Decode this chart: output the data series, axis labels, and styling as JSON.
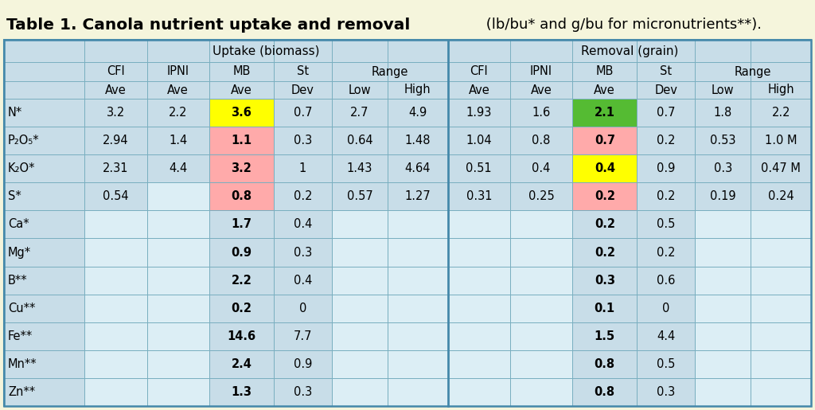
{
  "title_bold": "Table 1. Canola nutrient uptake and removal",
  "title_normal": " (lb/bu* and g/bu for micronutrients**).",
  "bg_color": "#F5F5DC",
  "table_bg": "#C8DDE8",
  "cell_light": "#DCEEf5",
  "grid_color": "#7AAFC0",
  "grid_color_thick": "#4488AA",
  "rows": [
    {
      "nutrient": "N*",
      "u_cfi": "3.2",
      "u_ipni": "2.2",
      "u_mb": "3.6",
      "u_sd": "0.7",
      "u_low": "2.7",
      "u_high": "4.9",
      "r_cfi": "1.93",
      "r_ipni": "1.6",
      "r_mb": "2.1",
      "r_sd": "0.7",
      "r_low": "1.8",
      "r_high": "2.2",
      "u_mb_color": "#FFFF00",
      "r_mb_color": "#55BB33"
    },
    {
      "nutrient": "P₂O₅*",
      "u_cfi": "2.94",
      "u_ipni": "1.4",
      "u_mb": "1.1",
      "u_sd": "0.3",
      "u_low": "0.64",
      "u_high": "1.48",
      "r_cfi": "1.04",
      "r_ipni": "0.8",
      "r_mb": "0.7",
      "r_sd": "0.2",
      "r_low": "0.53",
      "r_high": "1.0 M",
      "u_mb_color": "#FFAAAA",
      "r_mb_color": "#FFAAAA"
    },
    {
      "nutrient": "K₂O*",
      "u_cfi": "2.31",
      "u_ipni": "4.4",
      "u_mb": "3.2",
      "u_sd": "1",
      "u_low": "1.43",
      "u_high": "4.64",
      "r_cfi": "0.51",
      "r_ipni": "0.4",
      "r_mb": "0.4",
      "r_sd": "0.9",
      "r_low": "0.3",
      "r_high": "0.47 M",
      "u_mb_color": "#FFAAAA",
      "r_mb_color": "#FFFF00"
    },
    {
      "nutrient": "S*",
      "u_cfi": "0.54",
      "u_ipni": "",
      "u_mb": "0.8",
      "u_sd": "0.2",
      "u_low": "0.57",
      "u_high": "1.27",
      "r_cfi": "0.31",
      "r_ipni": "0.25",
      "r_mb": "0.2",
      "r_sd": "0.2",
      "r_low": "0.19",
      "r_high": "0.24",
      "u_mb_color": "#FFAAAA",
      "r_mb_color": "#FFAAAA"
    },
    {
      "nutrient": "Ca*",
      "u_cfi": "",
      "u_ipni": "",
      "u_mb": "1.7",
      "u_sd": "0.4",
      "u_low": "",
      "u_high": "",
      "r_cfi": "",
      "r_ipni": "",
      "r_mb": "0.2",
      "r_sd": "0.5",
      "r_low": "",
      "r_high": "",
      "u_mb_color": null,
      "r_mb_color": null
    },
    {
      "nutrient": "Mg*",
      "u_cfi": "",
      "u_ipni": "",
      "u_mb": "0.9",
      "u_sd": "0.3",
      "u_low": "",
      "u_high": "",
      "r_cfi": "",
      "r_ipni": "",
      "r_mb": "0.2",
      "r_sd": "0.2",
      "r_low": "",
      "r_high": "",
      "u_mb_color": null,
      "r_mb_color": null
    },
    {
      "nutrient": "B**",
      "u_cfi": "",
      "u_ipni": "",
      "u_mb": "2.2",
      "u_sd": "0.4",
      "u_low": "",
      "u_high": "",
      "r_cfi": "",
      "r_ipni": "",
      "r_mb": "0.3",
      "r_sd": "0.6",
      "r_low": "",
      "r_high": "",
      "u_mb_color": null,
      "r_mb_color": null
    },
    {
      "nutrient": "Cu**",
      "u_cfi": "",
      "u_ipni": "",
      "u_mb": "0.2",
      "u_sd": "0",
      "u_low": "",
      "u_high": "",
      "r_cfi": "",
      "r_ipni": "",
      "r_mb": "0.1",
      "r_sd": "0",
      "r_low": "",
      "r_high": "",
      "u_mb_color": null,
      "r_mb_color": null
    },
    {
      "nutrient": "Fe**",
      "u_cfi": "",
      "u_ipni": "",
      "u_mb": "14.6",
      "u_sd": "7.7",
      "u_low": "",
      "u_high": "",
      "r_cfi": "",
      "r_ipni": "",
      "r_mb": "1.5",
      "r_sd": "4.4",
      "r_low": "",
      "r_high": "",
      "u_mb_color": null,
      "r_mb_color": null
    },
    {
      "nutrient": "Mn**",
      "u_cfi": "",
      "u_ipni": "",
      "u_mb": "2.4",
      "u_sd": "0.9",
      "u_low": "",
      "u_high": "",
      "r_cfi": "",
      "r_ipni": "",
      "r_mb": "0.8",
      "r_sd": "0.5",
      "r_low": "",
      "r_high": "",
      "u_mb_color": null,
      "r_mb_color": null
    },
    {
      "nutrient": "Zn**",
      "u_cfi": "",
      "u_ipni": "",
      "u_mb": "1.3",
      "u_sd": "0.3",
      "u_low": "",
      "u_high": "",
      "r_cfi": "",
      "r_ipni": "",
      "r_mb": "0.8",
      "r_sd": "0.3",
      "r_low": "",
      "r_high": "",
      "u_mb_color": null,
      "r_mb_color": null
    }
  ],
  "col_widths_rel": [
    75,
    58,
    58,
    60,
    54,
    52,
    56,
    58,
    58,
    60,
    54,
    52,
    56
  ]
}
